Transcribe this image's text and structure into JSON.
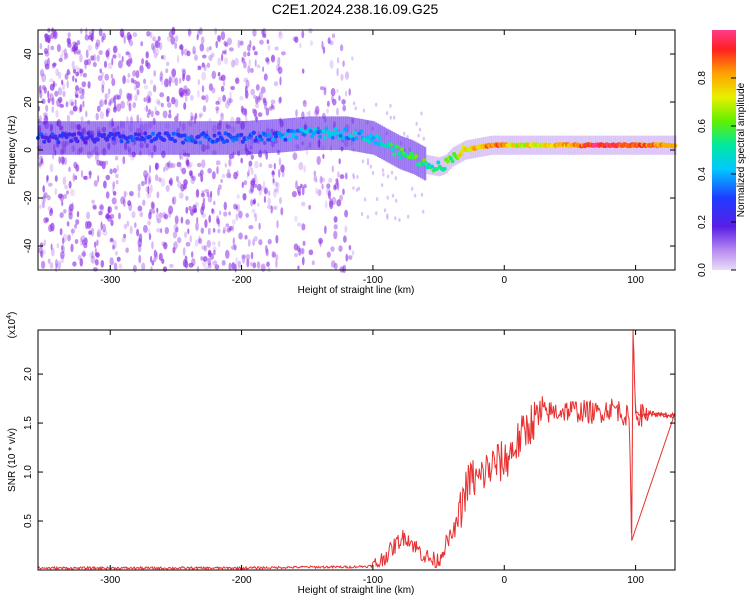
{
  "title": "C2E1.2024.238.16.09.G25",
  "colors": {
    "signal": "#e83030",
    "noise_cloud": "#8a2be2",
    "axis": "#000000"
  },
  "chart_data": [
    {
      "type": "heatmap",
      "name": "spectrogram",
      "xlabel": "Height of straight line (km)",
      "ylabel": "Frequency (Hz)",
      "xlim": [
        -355,
        130
      ],
      "ylim": [
        -50,
        50
      ],
      "x_ticks": [
        {
          "value": -300,
          "label": "-300"
        },
        {
          "value": -200,
          "label": "-200"
        },
        {
          "value": -100,
          "label": "-100"
        },
        {
          "value": 0,
          "label": "0"
        },
        {
          "value": 100,
          "label": "100"
        }
      ],
      "y_ticks": [
        {
          "value": -40,
          "label": "-40"
        },
        {
          "value": -20,
          "label": "-20"
        },
        {
          "value": 0,
          "label": "0"
        },
        {
          "value": 20,
          "label": "20"
        },
        {
          "value": 40,
          "label": "40"
        }
      ],
      "colorbar": {
        "label": "Normalized spectral amplitude",
        "range": [
          0,
          1
        ],
        "ticks": [
          {
            "value": 0.0,
            "label": "0.0"
          },
          {
            "value": 0.2,
            "label": "0.2"
          },
          {
            "value": 0.4,
            "label": "0.4"
          },
          {
            "value": 0.6,
            "label": "0.6"
          },
          {
            "value": 0.8,
            "label": "0.8"
          }
        ]
      },
      "noise_region": {
        "x_range": [
          -355,
          -115
        ],
        "gap": [
          -168,
          -160
        ],
        "ylim": [
          -50,
          50
        ]
      },
      "signal_track": {
        "x": [
          -355,
          -300,
          -250,
          -200,
          -170,
          -150,
          -120,
          -100,
          -90,
          -80,
          -70,
          -60,
          -50,
          -45,
          -40,
          -30,
          -20,
          -10,
          0,
          10,
          30,
          50,
          70,
          90,
          110,
          130
        ],
        "freq": [
          5,
          5,
          5,
          5,
          6,
          7,
          7,
          5,
          2,
          -1,
          -3,
          -6,
          -7,
          -6,
          -3,
          0,
          1,
          2,
          2,
          2,
          2,
          2,
          2,
          2,
          2,
          2
        ],
        "amplitude": [
          0.25,
          0.25,
          0.3,
          0.3,
          0.35,
          0.4,
          0.4,
          0.45,
          0.5,
          0.55,
          0.55,
          0.55,
          0.5,
          0.55,
          0.6,
          0.75,
          0.8,
          0.85,
          0.85,
          0.7,
          0.75,
          0.8,
          0.95,
          0.9,
          0.85,
          0.8
        ]
      }
    },
    {
      "type": "line",
      "name": "snr",
      "xlabel": "Height of straight line (km)",
      "ylabel": "SNR (10 * v/v)",
      "y_multiplier_label": "(x10",
      "y_multiplier_exponent": "4",
      "y_multiplier_suffix": ")",
      "xlim": [
        -355,
        130
      ],
      "ylim": [
        0,
        2.45
      ],
      "x_ticks": [
        {
          "value": -300,
          "label": "-300"
        },
        {
          "value": -200,
          "label": "-200"
        },
        {
          "value": -100,
          "label": "-100"
        },
        {
          "value": 0,
          "label": "0"
        },
        {
          "value": 100,
          "label": "100"
        }
      ],
      "y_ticks": [
        {
          "value": 0.5,
          "label": "0.5"
        },
        {
          "value": 1.0,
          "label": "1.0"
        },
        {
          "value": 1.5,
          "label": "1.5"
        },
        {
          "value": 2.0,
          "label": "2.0"
        }
      ],
      "series": [
        {
          "name": "SNR",
          "x": [
            -355,
            -300,
            -250,
            -200,
            -150,
            -120,
            -100,
            -95,
            -90,
            -85,
            -80,
            -75,
            -70,
            -65,
            -60,
            -55,
            -50,
            -45,
            -40,
            -35,
            -30,
            -25,
            -20,
            -15,
            -10,
            -5,
            0,
            5,
            10,
            15,
            20,
            25,
            30,
            40,
            50,
            60,
            70,
            80,
            85,
            90,
            95,
            97,
            98,
            100,
            105,
            110,
            120,
            130
          ],
          "y": [
            0.02,
            0.02,
            0.02,
            0.02,
            0.03,
            0.03,
            0.04,
            0.08,
            0.15,
            0.22,
            0.3,
            0.35,
            0.27,
            0.2,
            0.14,
            0.1,
            0.1,
            0.25,
            0.35,
            0.5,
            0.8,
            0.95,
            0.9,
            1.0,
            1.05,
            1.1,
            1.1,
            1.2,
            1.3,
            1.4,
            1.5,
            1.55,
            1.6,
            1.62,
            1.63,
            1.62,
            1.6,
            1.65,
            1.65,
            1.6,
            1.55,
            0.3,
            2.45,
            1.6,
            1.58,
            1.6,
            1.58,
            1.57
          ]
        }
      ]
    }
  ]
}
